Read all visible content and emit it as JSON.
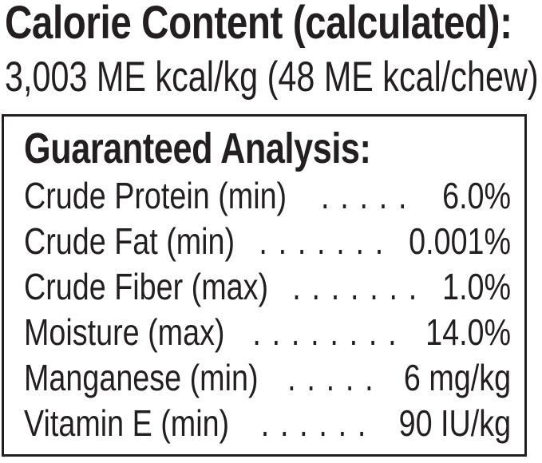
{
  "header": {
    "title": "Calorie Content (calculated):",
    "calorie_line": "3,003 ME kcal/kg (48 ME kcal/chew)"
  },
  "analysis": {
    "heading": "Guaranteed Analysis:",
    "rows": [
      {
        "label": "Crude Protein (min)",
        "dots": ". . . . .",
        "value": "6.0%"
      },
      {
        "label": "Crude Fat (min)",
        "dots": ". . . . . . .",
        "value": "0.001%"
      },
      {
        "label": "Crude Fiber (max)",
        "dots": ". . . . . . .",
        "value": "1.0%"
      },
      {
        "label": "Moisture (max)",
        "dots": ". . . . . . . .",
        "value": "14.0%"
      },
      {
        "label": "Manganese (min)",
        "dots": ". . . . .",
        "value": "6 mg/kg"
      },
      {
        "label": "Vitamin E (min)",
        "dots": ". . . . . .",
        "value": "90 IU/kg"
      }
    ]
  },
  "colors": {
    "text": "#231f20",
    "background": "#ffffff",
    "box_border": "#231f20"
  }
}
